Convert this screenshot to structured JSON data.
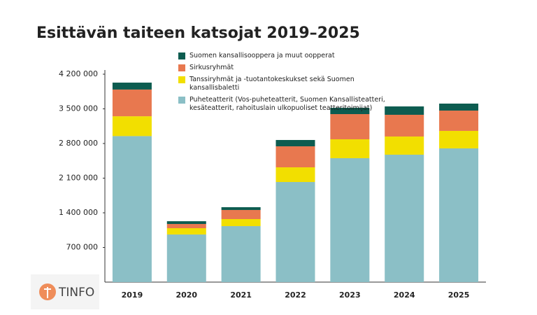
{
  "chart_data": {
    "type": "stacked-bar",
    "title": "Esittävän taiteen katsojat 2019–2025",
    "categories": [
      "2019",
      "2020",
      "2021",
      "2022",
      "2023",
      "2024",
      "2025"
    ],
    "series": [
      {
        "name": "Puheteatterit (Vos-puheteatterit, Suomen Kansallisteatteri, kesäteatterit, rahoituslain ulkopuoliset teatteritoimijat)",
        "color": "#8bbfc6",
        "values": [
          2950000,
          962000,
          1131000,
          2022000,
          2503000,
          2574000,
          2701000
        ]
      },
      {
        "name": "Tanssiryhmät ja -tuotantokeskukset sekä Suomen kansallisbaletti",
        "color": "#f2df00",
        "values": [
          400000,
          127000,
          142000,
          297000,
          382000,
          367000,
          354000
        ]
      },
      {
        "name": "Sirkusryhmät",
        "color": "#e8784f",
        "values": [
          540000,
          85000,
          184000,
          424000,
          509000,
          439000,
          410000
        ]
      },
      {
        "name": "Suomen kansallisooppera ja muut oopperat",
        "color": "#0d5c50",
        "values": [
          140000,
          56000,
          56000,
          128000,
          127000,
          169000,
          141000
        ]
      }
    ],
    "ylim": [
      0,
      4200000
    ],
    "yticks": [
      {
        "value": 700000,
        "label": "700 000"
      },
      {
        "value": 1400000,
        "label": "1 400 000"
      },
      {
        "value": 2100000,
        "label": "2 100 000"
      },
      {
        "value": 2800000,
        "label": "2 800 000"
      },
      {
        "value": 3500000,
        "label": "3 500 000"
      },
      {
        "value": 4200000,
        "label": "4 200 000"
      }
    ],
    "grid": false
  },
  "logo": "TINFO"
}
